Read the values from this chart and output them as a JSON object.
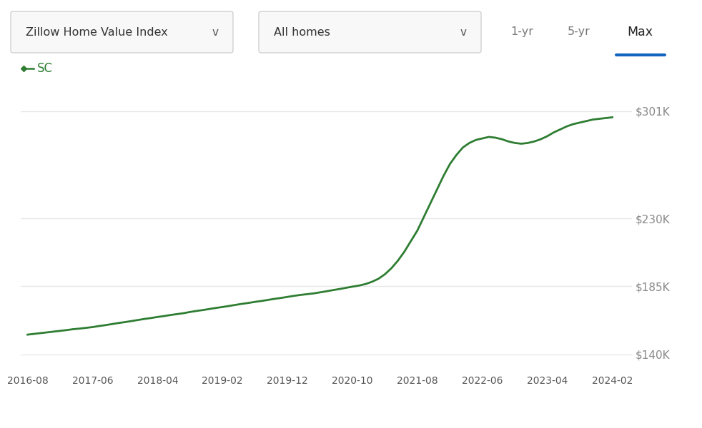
{
  "line_color": "#2e7d32",
  "line_label": "SC",
  "background_color": "#ffffff",
  "grid_color": "#e8e8e8",
  "ylabel_color": "#888888",
  "xlabel_color": "#555555",
  "y_ticks": [
    140000,
    185000,
    230000,
    301000
  ],
  "y_tick_labels": [
    "$140K",
    "$185K",
    "$230K",
    "$301K"
  ],
  "ylim": [
    128000,
    318000
  ],
  "x_tick_labels": [
    "2016-08",
    "2017-06",
    "2018-04",
    "2019-02",
    "2019-12",
    "2020-10",
    "2021-08",
    "2022-06",
    "2023-04",
    "2024-02"
  ],
  "active_tab_color": "#1565c0",
  "dropdown1_text": "Zillow Home Value Index",
  "dropdown2_text": "All homes",
  "tab1": "1-yr",
  "tab2": "5-yr",
  "tab3": "Max",
  "chevron": "v",
  "box_edge_color": "#d0d0d0",
  "box_face_color": "#f8f8f8",
  "data_x": [
    0,
    1,
    2,
    3,
    4,
    5,
    6,
    7,
    8,
    9,
    10,
    11,
    12,
    13,
    14,
    15,
    16,
    17,
    18,
    19,
    20,
    21,
    22,
    23,
    24,
    25,
    26,
    27,
    28,
    29,
    30,
    31,
    32,
    33,
    34,
    35,
    36,
    37,
    38,
    39,
    40,
    41,
    42,
    43,
    44,
    45,
    46,
    47,
    48,
    49,
    50,
    51,
    52,
    53,
    54,
    55,
    56,
    57,
    58,
    59,
    60,
    61,
    62,
    63,
    64,
    65,
    66,
    67,
    68,
    69,
    70,
    71,
    72,
    73,
    74,
    75,
    76,
    77,
    78,
    79,
    80,
    81,
    82,
    83,
    84,
    85,
    86,
    87,
    88,
    89,
    90
  ],
  "data_y": [
    153000,
    153500,
    154000,
    154500,
    155000,
    155500,
    156000,
    156600,
    157000,
    157500,
    158000,
    158700,
    159300,
    160000,
    160700,
    161300,
    162000,
    162700,
    163400,
    164000,
    164700,
    165300,
    166000,
    166600,
    167200,
    168000,
    168700,
    169300,
    170000,
    170700,
    171300,
    172000,
    172700,
    173400,
    174000,
    174700,
    175300,
    176000,
    176700,
    177300,
    178000,
    178700,
    179300,
    179800,
    180300,
    181000,
    181700,
    182500,
    183200,
    184000,
    184800,
    185500,
    186500,
    188000,
    190000,
    193000,
    197000,
    202000,
    208000,
    215000,
    222000,
    231000,
    240000,
    249000,
    258000,
    266000,
    272000,
    277000,
    280000,
    282000,
    283000,
    284000,
    283500,
    282500,
    281000,
    280000,
    279500,
    280000,
    281000,
    282500,
    284500,
    287000,
    289000,
    291000,
    292500,
    293500,
    294500,
    295500,
    296000,
    296500,
    297000
  ]
}
